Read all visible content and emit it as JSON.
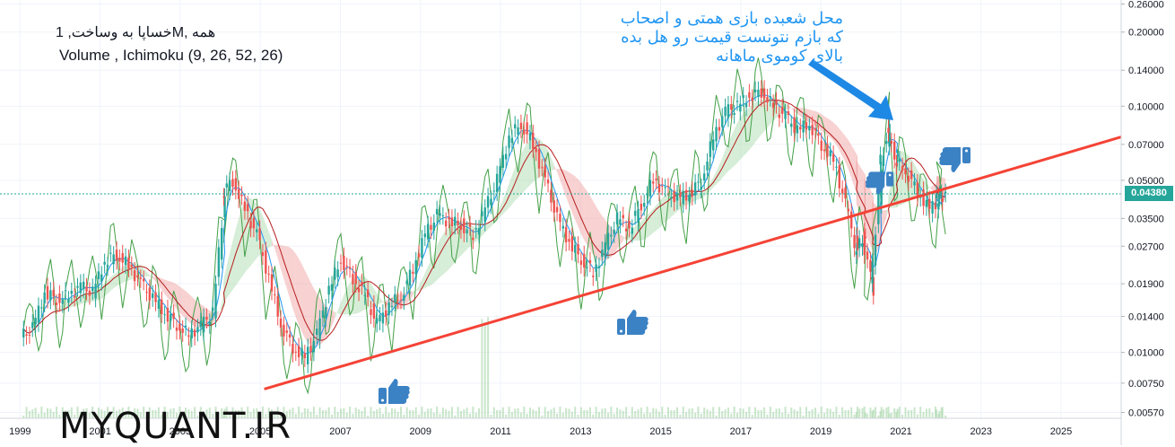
{
  "header": {
    "title": "خساپا به وساخت, 1M, همه",
    "indicators": "Volume , Ichimoku (9, 26, 52, 26)"
  },
  "annotation": {
    "lines": [
      "محل شعبده بازی همتی و اصحاب",
      "که بازم نتونست قیمت رو هل بده",
      "بالای کوموی ماهانه"
    ]
  },
  "watermark": "MYQUANT.IR",
  "colors": {
    "up": "#26a69a",
    "down": "#ef5350",
    "trendline": "#f44336",
    "tenkan": "#2196f3",
    "kijun": "#b71c1c",
    "chikou": "#43a047",
    "cloud_bull": "#a5d6a7",
    "cloud_bear": "#ef9a9a",
    "annotation": "#2196f3",
    "thumb": "#3b82c4"
  },
  "price_badge": "0.04380",
  "icons": [
    "thumbs-up-icon",
    "thumbs-up-icon",
    "thumbs-down-icon",
    "thumbs-down-icon",
    "annotation-arrow-icon"
  ],
  "chart_data": {
    "type": "candlestick",
    "title": "خساپا به وساخت, 1M, همه",
    "x_ticks": [
      "1999",
      "2001",
      "2003",
      "2005",
      "2007",
      "2009",
      "2011",
      "2013",
      "2015",
      "2017",
      "2019",
      "2021",
      "2023",
      "2025"
    ],
    "y_ticks": [
      "0.26000",
      "0.20000",
      "0.14000",
      "0.10000",
      "0.07000",
      "0.05000",
      "0.03500",
      "0.02700",
      "0.01900",
      "0.01400",
      "0.01000",
      "0.00750",
      "0.00570"
    ],
    "y_scale": "log",
    "ylim": [
      0.0054,
      0.27
    ],
    "xlim": [
      1998.5,
      2026.5
    ],
    "current_price": 0.0438,
    "trendline": {
      "start": [
        2005.1,
        0.0071
      ],
      "end": [
        2026.5,
        0.075
      ]
    },
    "candles": [
      [
        1999.2,
        0.0125
      ],
      [
        1999.5,
        0.0175
      ],
      [
        1999.8,
        0.0165
      ],
      [
        2000.1,
        0.017
      ],
      [
        2000.4,
        0.0185
      ],
      [
        2000.7,
        0.0175
      ],
      [
        2001.0,
        0.0235
      ],
      [
        2001.3,
        0.025
      ],
      [
        2001.6,
        0.0225
      ],
      [
        2001.9,
        0.019
      ],
      [
        2002.2,
        0.0165
      ],
      [
        2002.5,
        0.0145
      ],
      [
        2002.8,
        0.013
      ],
      [
        2003.1,
        0.0118
      ],
      [
        2003.4,
        0.0128
      ],
      [
        2003.7,
        0.0145
      ],
      [
        2004.0,
        0.044
      ],
      [
        2004.2,
        0.05
      ],
      [
        2004.5,
        0.038
      ],
      [
        2004.8,
        0.03
      ],
      [
        2005.1,
        0.02
      ],
      [
        2005.4,
        0.013
      ],
      [
        2005.7,
        0.0105
      ],
      [
        2006.0,
        0.0095
      ],
      [
        2006.3,
        0.0118
      ],
      [
        2006.6,
        0.018
      ],
      [
        2006.9,
        0.024
      ],
      [
        2007.2,
        0.02
      ],
      [
        2007.5,
        0.017
      ],
      [
        2007.8,
        0.013
      ],
      [
        2008.1,
        0.0155
      ],
      [
        2008.4,
        0.017
      ],
      [
        2008.7,
        0.022
      ],
      [
        2009.0,
        0.03
      ],
      [
        2009.3,
        0.036
      ],
      [
        2009.6,
        0.034
      ],
      [
        2009.9,
        0.033
      ],
      [
        2010.2,
        0.03
      ],
      [
        2010.5,
        0.038
      ],
      [
        2010.8,
        0.05
      ],
      [
        2011.1,
        0.075
      ],
      [
        2011.4,
        0.085
      ],
      [
        2011.7,
        0.07
      ],
      [
        2012.0,
        0.05
      ],
      [
        2012.3,
        0.035
      ],
      [
        2012.6,
        0.028
      ],
      [
        2012.9,
        0.024
      ],
      [
        2013.2,
        0.021
      ],
      [
        2013.5,
        0.027
      ],
      [
        2013.8,
        0.035
      ],
      [
        2014.1,
        0.032
      ],
      [
        2014.4,
        0.04
      ],
      [
        2014.7,
        0.05
      ],
      [
        2015.0,
        0.045
      ],
      [
        2015.3,
        0.042
      ],
      [
        2015.6,
        0.044
      ],
      [
        2015.9,
        0.05
      ],
      [
        2016.2,
        0.075
      ],
      [
        2016.5,
        0.095
      ],
      [
        2016.8,
        0.1
      ],
      [
        2017.1,
        0.11
      ],
      [
        2017.4,
        0.115
      ],
      [
        2017.7,
        0.1
      ],
      [
        2018.0,
        0.09
      ],
      [
        2018.3,
        0.08
      ],
      [
        2018.6,
        0.085
      ],
      [
        2018.9,
        0.07
      ],
      [
        2019.2,
        0.06
      ],
      [
        2019.5,
        0.04
      ],
      [
        2019.8,
        0.025
      ],
      [
        2020.0,
        0.03
      ],
      [
        2020.2,
        0.018
      ],
      [
        2020.4,
        0.055
      ],
      [
        2020.6,
        0.08
      ],
      [
        2020.8,
        0.06
      ],
      [
        2021.0,
        0.055
      ],
      [
        2021.3,
        0.045
      ],
      [
        2021.6,
        0.038
      ],
      [
        2021.9,
        0.042
      ],
      [
        2022.0,
        0.0438
      ]
    ]
  }
}
